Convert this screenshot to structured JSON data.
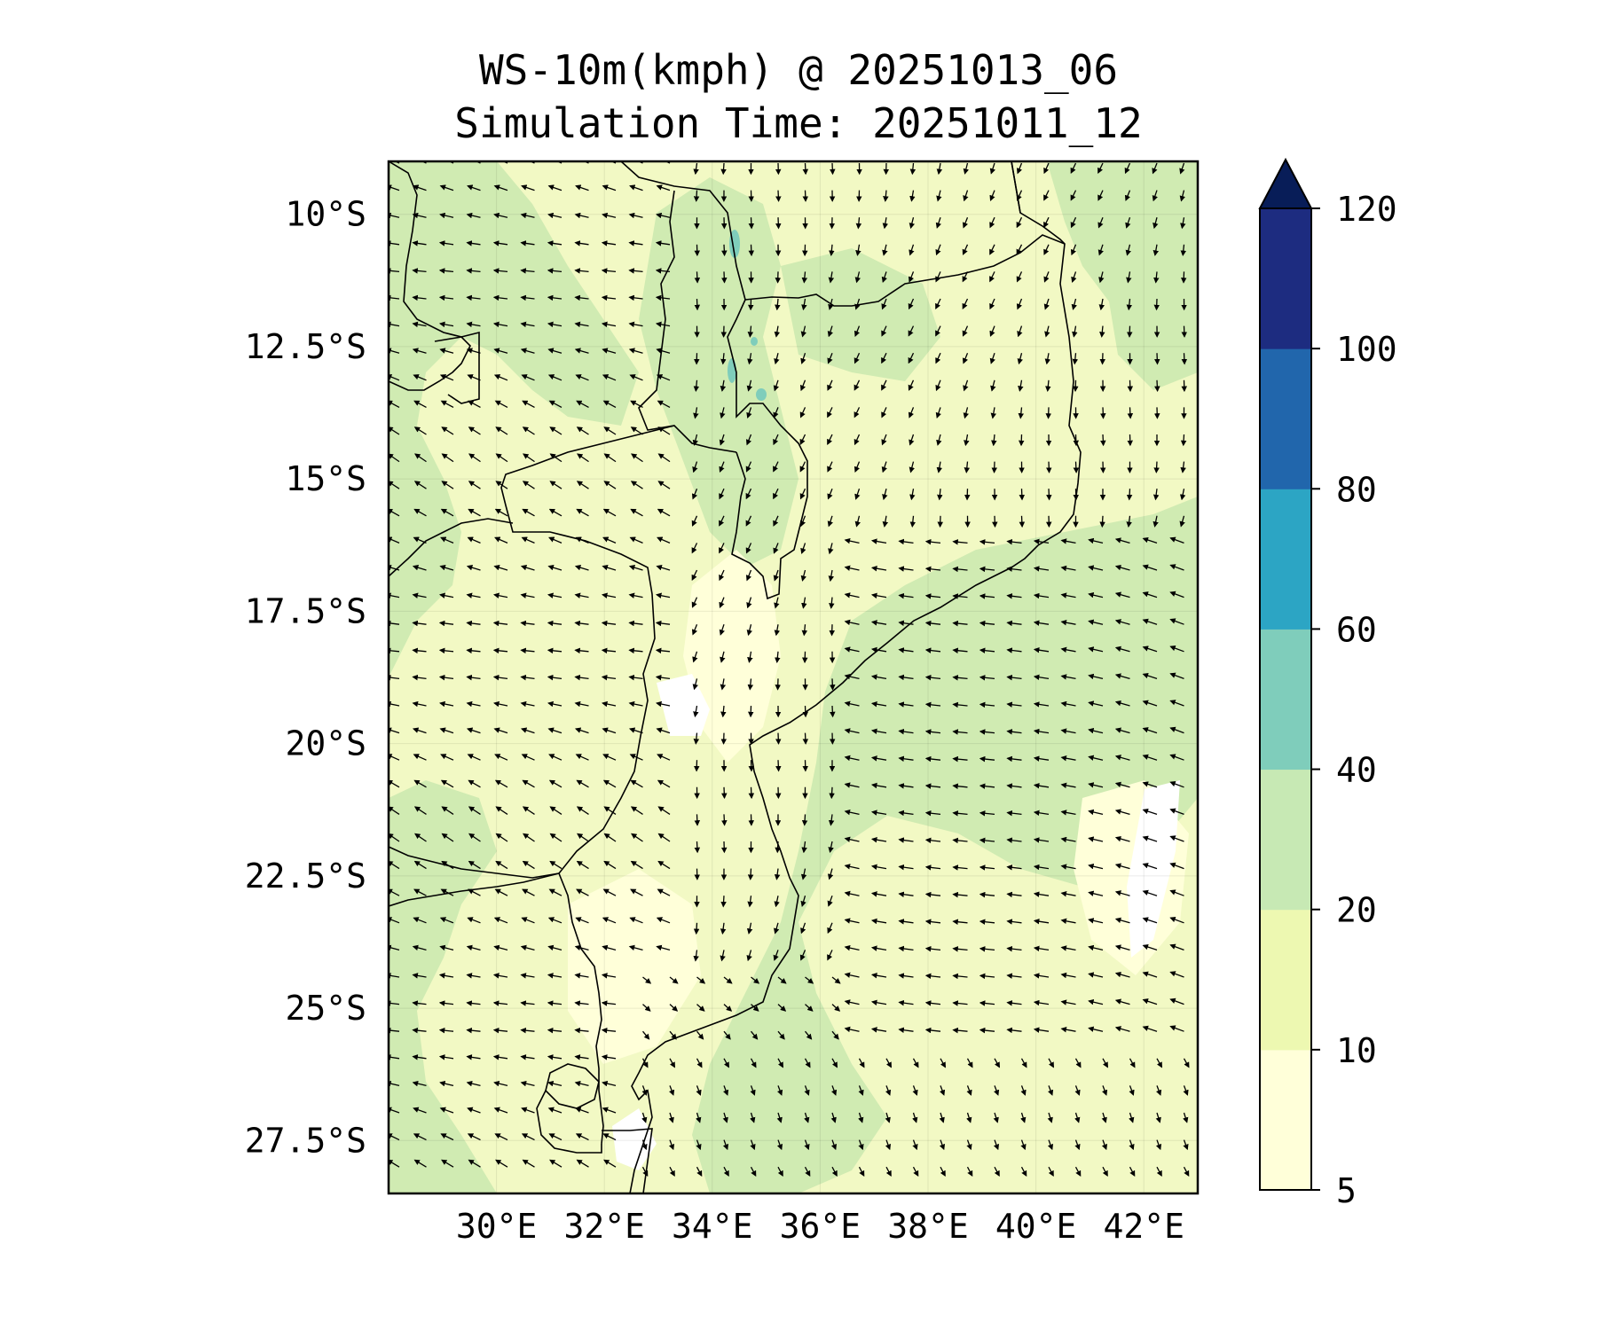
{
  "title": {
    "line1": "WS-10m(kmph) @ 20251013_06",
    "line2": "Simulation Time: 20251011_12"
  },
  "map": {
    "lon_range": [
      28.0,
      43.0
    ],
    "lat_range": [
      -28.5,
      -9.0
    ],
    "lat_ticks": [
      {
        "value": -10.0,
        "label": "10°S"
      },
      {
        "value": -12.5,
        "label": "12.5°S"
      },
      {
        "value": -15.0,
        "label": "15°S"
      },
      {
        "value": -17.5,
        "label": "17.5°S"
      },
      {
        "value": -20.0,
        "label": "20°S"
      },
      {
        "value": -22.5,
        "label": "22.5°S"
      },
      {
        "value": -25.0,
        "label": "25°S"
      },
      {
        "value": -27.5,
        "label": "27.5°S"
      }
    ],
    "lon_ticks": [
      {
        "value": 30,
        "label": "30°E"
      },
      {
        "value": 32,
        "label": "32°E"
      },
      {
        "value": 34,
        "label": "34°E"
      },
      {
        "value": 36,
        "label": "36°E"
      },
      {
        "value": 38,
        "label": "38°E"
      },
      {
        "value": 40,
        "label": "40°E"
      },
      {
        "value": 42,
        "label": "42°E"
      }
    ],
    "gridlines": true
  },
  "colorbar": {
    "levels": [
      5,
      10,
      20,
      40,
      60,
      80,
      100,
      120
    ],
    "labels": [
      "5",
      "10",
      "20",
      "40",
      "60",
      "80",
      "100",
      "120"
    ],
    "colors": [
      "#ffffd9",
      "#edf8b1",
      "#c7e9b4",
      "#7fcdbb",
      "#2ca5c4",
      "#2166ac",
      "#1d2c80",
      "#081d58"
    ],
    "extend": "max"
  },
  "colors": {
    "land_light": "#f2f9c4",
    "land_mid": "#d0ebb2",
    "calm": "#ffffff",
    "coast": "#000000",
    "lakes": "#7fcdbb"
  }
}
